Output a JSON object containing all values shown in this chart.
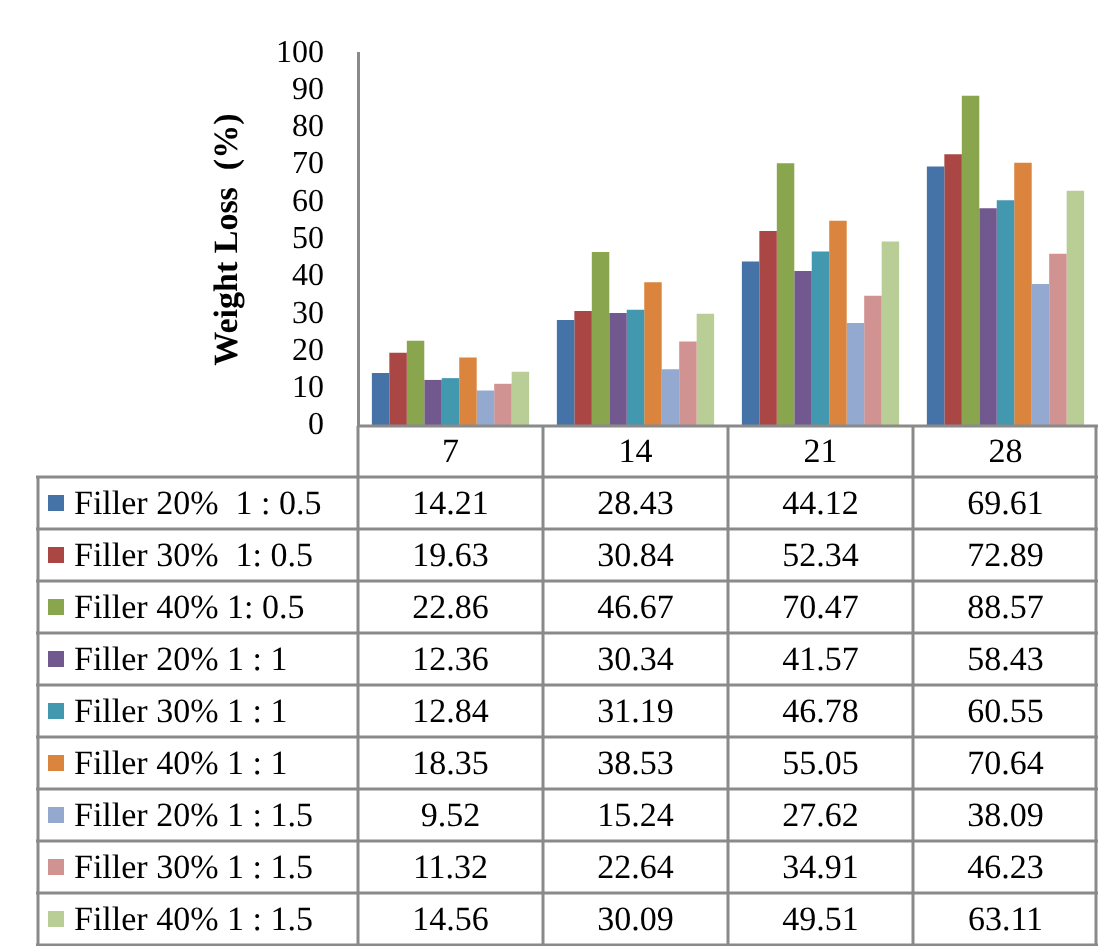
{
  "chart_data": {
    "type": "bar",
    "ylabel": "Weight Loss  (%)",
    "categories": [
      "7",
      "14",
      "21",
      "28"
    ],
    "series": [
      {
        "name": "Filler 20%  1 : 0.5",
        "color": "#4572a7",
        "values": [
          14.21,
          28.43,
          44.12,
          69.61
        ]
      },
      {
        "name": "Filler 30%  1: 0.5",
        "color": "#aa4643",
        "values": [
          19.63,
          30.84,
          52.34,
          72.89
        ]
      },
      {
        "name": "Filler 40% 1: 0.5",
        "color": "#89a54e",
        "values": [
          22.86,
          46.67,
          70.47,
          88.57
        ]
      },
      {
        "name": "Filler 20% 1 : 1",
        "color": "#71588f",
        "values": [
          12.36,
          30.34,
          41.57,
          58.43
        ]
      },
      {
        "name": "Filler 30% 1 : 1",
        "color": "#4198af",
        "values": [
          12.84,
          31.19,
          46.78,
          60.55
        ]
      },
      {
        "name": "Filler 40% 1 : 1",
        "color": "#db843d",
        "values": [
          18.35,
          38.53,
          55.05,
          70.64
        ]
      },
      {
        "name": "Filler 20% 1 : 1.5",
        "color": "#93a9cf",
        "values": [
          9.52,
          15.24,
          27.62,
          38.09
        ]
      },
      {
        "name": "Filler 30% 1 : 1.5",
        "color": "#d19392",
        "values": [
          11.32,
          22.64,
          34.91,
          46.23
        ]
      },
      {
        "name": "Filler 40% 1 : 1.5",
        "color": "#b9cd96",
        "values": [
          14.56,
          30.09,
          49.51,
          63.11
        ]
      }
    ],
    "ylim": [
      0,
      100
    ],
    "yticks": [
      0,
      10,
      20,
      30,
      40,
      50,
      60,
      70,
      80,
      90,
      100
    ],
    "grid": false,
    "legend": "bottom",
    "data_labels": true
  }
}
